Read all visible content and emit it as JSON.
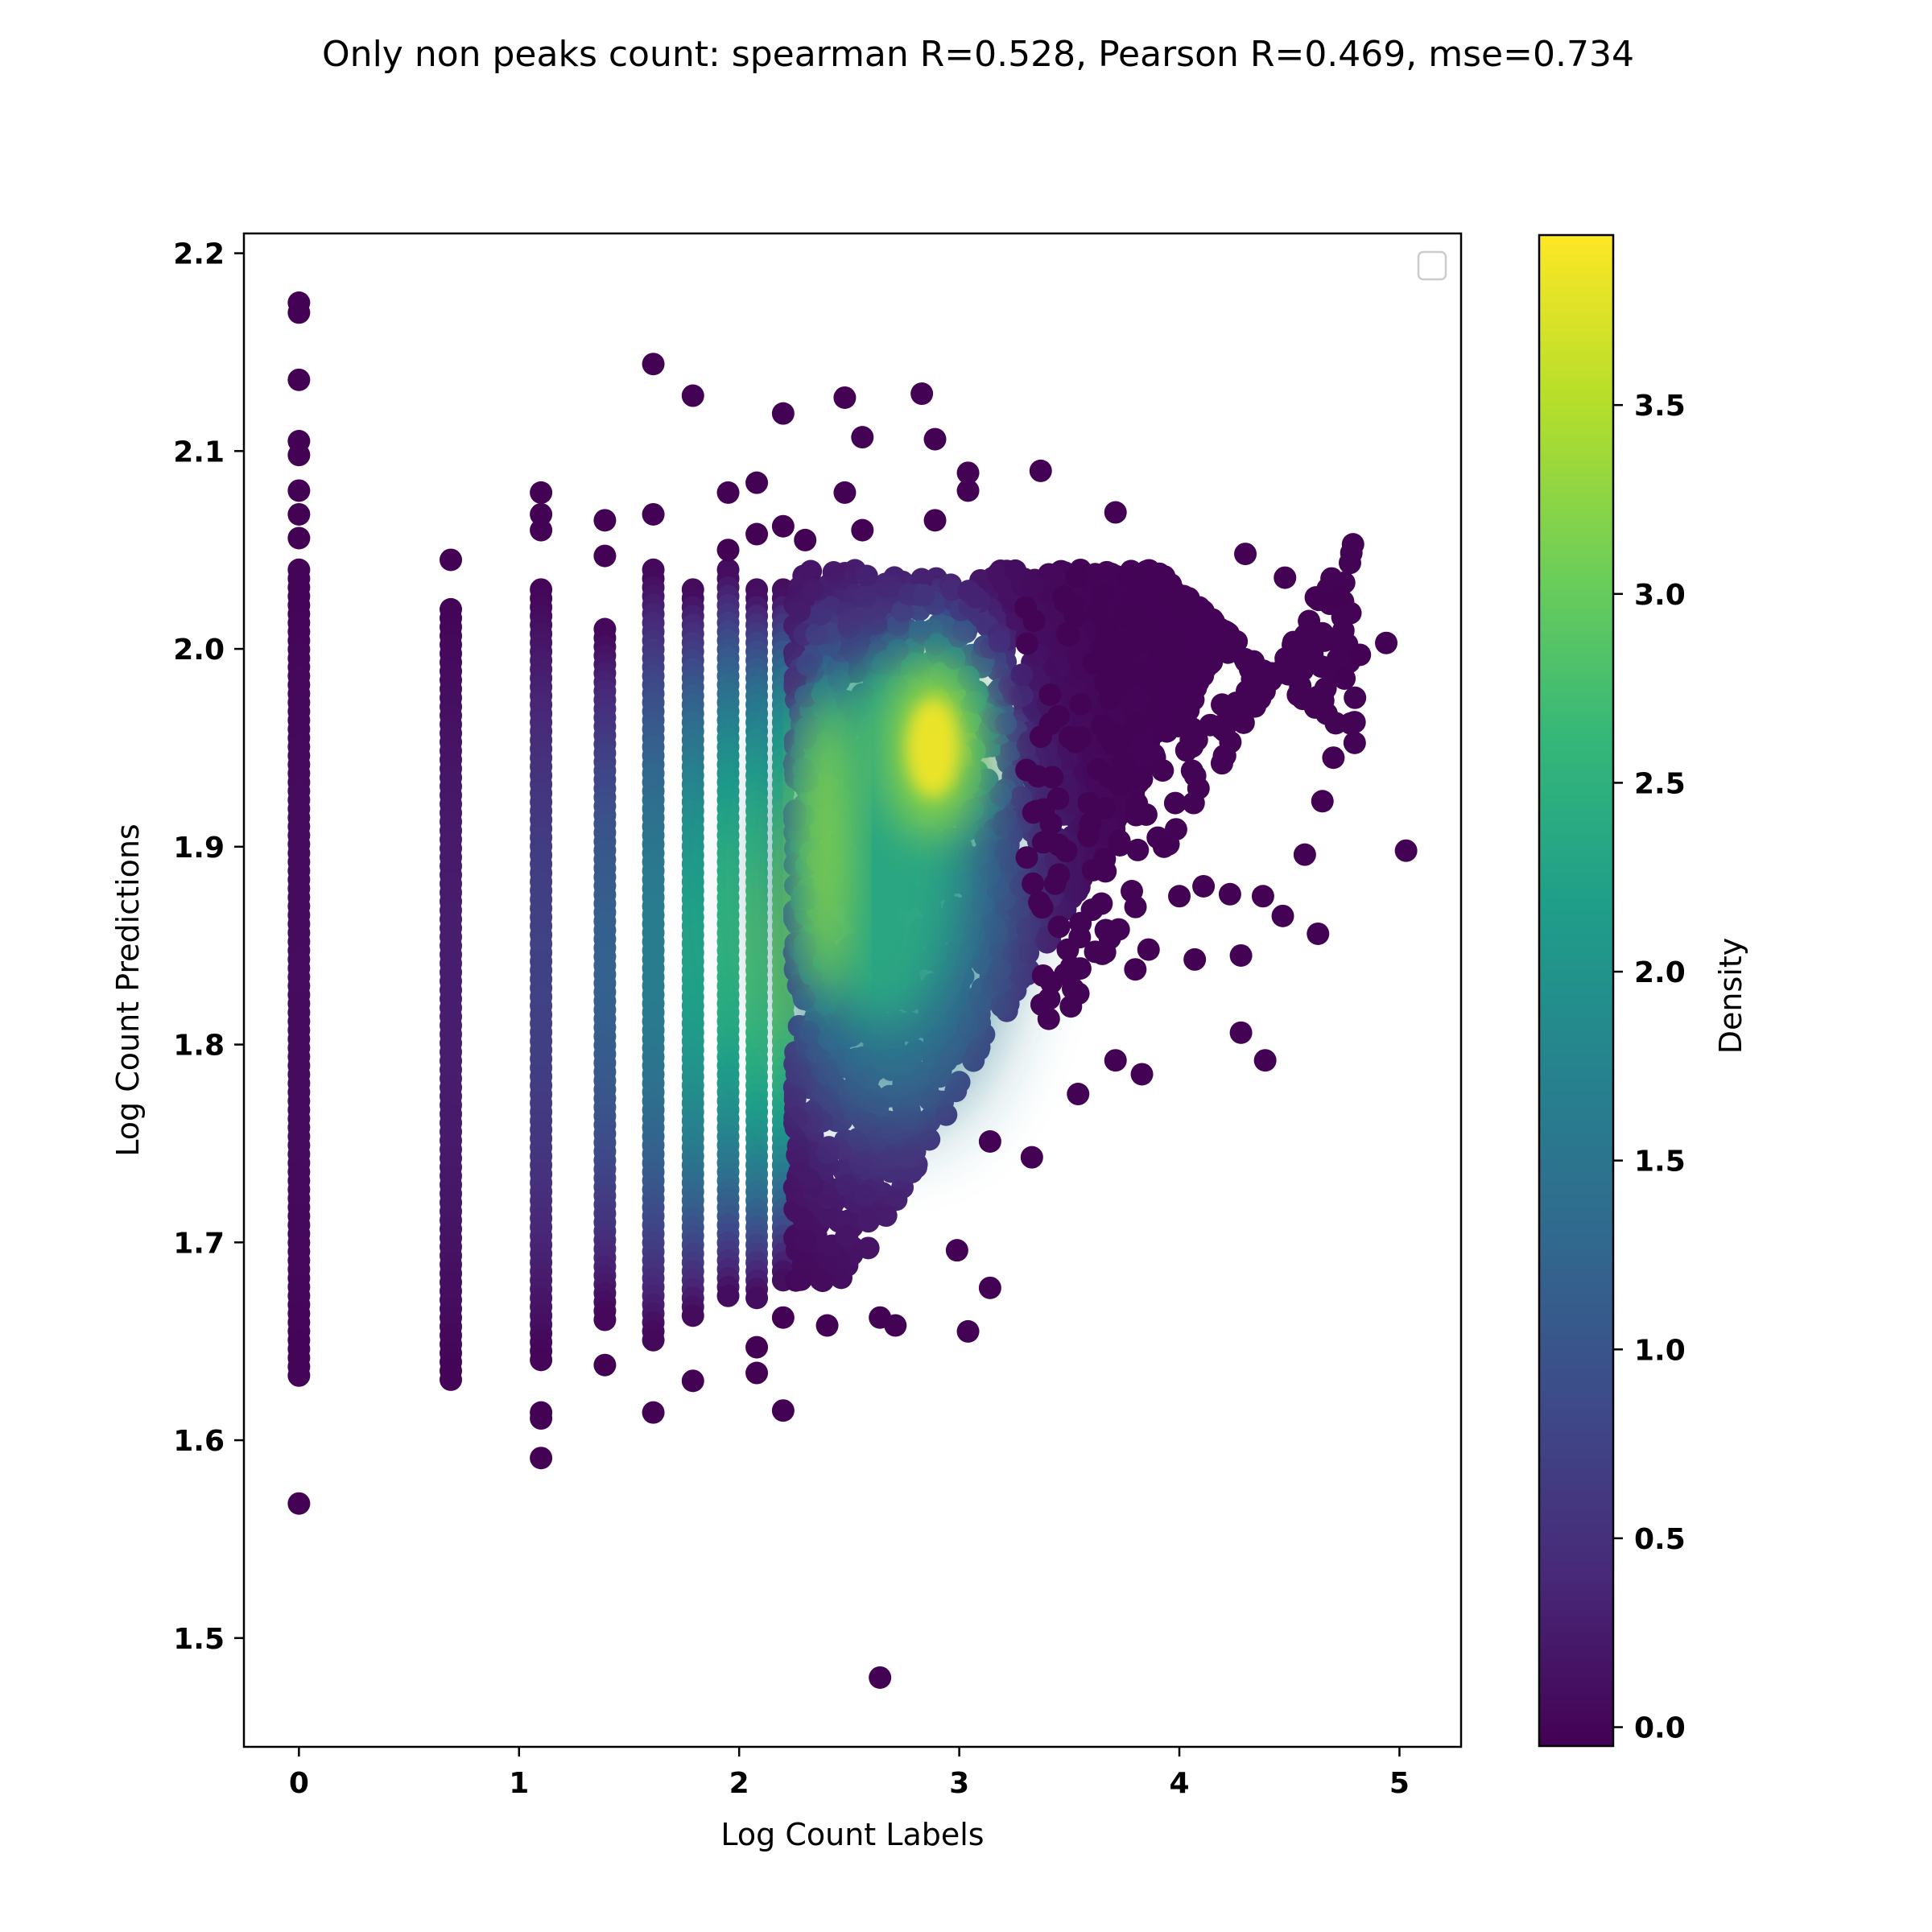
{
  "chart_data": {
    "type": "scatter",
    "title": "Only non peaks count: spearman R=0.528, Pearson R=0.469, mse=0.734",
    "xlabel": "Log Count Labels",
    "ylabel": "Log Count Predictions",
    "xlim": [
      -0.25,
      5.28
    ],
    "ylim": [
      1.445,
      2.21
    ],
    "xticks": [
      0,
      1,
      2,
      3,
      4,
      5
    ],
    "yticks": [
      1.5,
      1.6,
      1.7,
      1.8,
      1.9,
      2.0,
      2.1,
      2.2
    ],
    "grid": false,
    "legend": {
      "placement": "top-right",
      "entries": []
    },
    "colorbar": {
      "label": "Density",
      "min": -0.05,
      "max": 3.95,
      "ticks": [
        0.0,
        0.5,
        1.0,
        1.5,
        2.0,
        2.5,
        3.0,
        3.5
      ],
      "colormap": "viridis",
      "colors": [
        "#440154",
        "#482878",
        "#3e4989",
        "#31688e",
        "#26828e",
        "#1f9e89",
        "#35b779",
        "#6ece58",
        "#b5de2b",
        "#fde725"
      ]
    },
    "density_peaks": [
      {
        "x": 2.88,
        "y": 1.95,
        "density": 3.9
      },
      {
        "x": 2.4,
        "y": 1.9,
        "density": 3.5
      }
    ],
    "columns": [
      {
        "x": 0.0,
        "y_range": [
          1.63,
          2.04
        ],
        "density": 0.1
      },
      {
        "x": 0.69,
        "y_range": [
          1.63,
          2.02
        ],
        "density": 0.3
      },
      {
        "x": 1.1,
        "y_range": [
          1.64,
          2.03
        ],
        "density": 0.75
      },
      {
        "x": 1.39,
        "y_range": [
          1.66,
          2.01
        ],
        "density": 1.2
      },
      {
        "x": 1.61,
        "y_range": [
          1.65,
          2.04
        ],
        "density": 1.65
      },
      {
        "x": 1.79,
        "y_range": [
          1.66,
          2.03
        ],
        "density": 2.25
      },
      {
        "x": 1.95,
        "y_range": [
          1.67,
          2.04
        ],
        "density": 2.55
      },
      {
        "x": 2.08,
        "y_range": [
          1.67,
          2.03
        ],
        "density": 2.8
      },
      {
        "x": 2.2,
        "y_range": [
          1.68,
          2.03
        ],
        "density": 3.1
      }
    ],
    "outliers": [
      {
        "x": 0.0,
        "y": 2.175
      },
      {
        "x": 0.0,
        "y": 2.17
      },
      {
        "x": 0.0,
        "y": 2.136
      },
      {
        "x": 0.0,
        "y": 2.105
      },
      {
        "x": 0.0,
        "y": 2.098
      },
      {
        "x": 0.0,
        "y": 2.08
      },
      {
        "x": 0.0,
        "y": 2.068
      },
      {
        "x": 0.0,
        "y": 2.056
      },
      {
        "x": 0.0,
        "y": 1.568
      },
      {
        "x": 0.69,
        "y": 2.045
      },
      {
        "x": 1.1,
        "y": 2.079
      },
      {
        "x": 1.1,
        "y": 2.068
      },
      {
        "x": 1.1,
        "y": 2.06
      },
      {
        "x": 1.1,
        "y": 1.614
      },
      {
        "x": 1.1,
        "y": 1.611
      },
      {
        "x": 1.1,
        "y": 1.591
      },
      {
        "x": 1.39,
        "y": 2.065
      },
      {
        "x": 1.39,
        "y": 2.047
      },
      {
        "x": 1.39,
        "y": 1.638
      },
      {
        "x": 1.61,
        "y": 2.068
      },
      {
        "x": 1.61,
        "y": 2.144
      },
      {
        "x": 1.61,
        "y": 1.614
      },
      {
        "x": 1.79,
        "y": 2.128
      },
      {
        "x": 1.79,
        "y": 1.63
      },
      {
        "x": 1.95,
        "y": 2.079
      },
      {
        "x": 1.95,
        "y": 2.05
      },
      {
        "x": 2.08,
        "y": 2.084
      },
      {
        "x": 2.08,
        "y": 2.058
      },
      {
        "x": 2.08,
        "y": 1.647
      },
      {
        "x": 2.08,
        "y": 1.634
      },
      {
        "x": 2.2,
        "y": 2.119
      },
      {
        "x": 2.2,
        "y": 2.062
      },
      {
        "x": 2.2,
        "y": 1.662
      },
      {
        "x": 2.2,
        "y": 1.615
      },
      {
        "x": 2.3,
        "y": 2.055
      },
      {
        "x": 2.4,
        "y": 1.658
      },
      {
        "x": 2.48,
        "y": 2.127
      },
      {
        "x": 2.48,
        "y": 2.079
      },
      {
        "x": 2.56,
        "y": 2.107
      },
      {
        "x": 2.56,
        "y": 2.06
      },
      {
        "x": 2.64,
        "y": 1.662
      },
      {
        "x": 2.64,
        "y": 1.48
      },
      {
        "x": 2.71,
        "y": 1.658
      },
      {
        "x": 2.83,
        "y": 2.129
      },
      {
        "x": 2.89,
        "y": 2.106
      },
      {
        "x": 2.89,
        "y": 2.065
      },
      {
        "x": 2.99,
        "y": 1.696
      },
      {
        "x": 3.04,
        "y": 2.089
      },
      {
        "x": 3.04,
        "y": 2.08
      },
      {
        "x": 3.04,
        "y": 1.655
      },
      {
        "x": 3.14,
        "y": 1.677
      },
      {
        "x": 3.37,
        "y": 2.09
      },
      {
        "x": 3.71,
        "y": 2.069
      },
      {
        "x": 4.28,
        "y": 1.806
      },
      {
        "x": 4.39,
        "y": 1.792
      },
      {
        "x": 4.63,
        "y": 1.856
      },
      {
        "x": 4.94,
        "y": 2.003
      },
      {
        "x": 5.03,
        "y": 1.898
      },
      {
        "x": 3.83,
        "y": 1.785
      },
      {
        "x": 3.54,
        "y": 1.775
      },
      {
        "x": 3.33,
        "y": 1.743
      },
      {
        "x": 3.14,
        "y": 1.751
      },
      {
        "x": 3.71,
        "y": 1.792
      },
      {
        "x": 4.47,
        "y": 1.865
      },
      {
        "x": 4.57,
        "y": 1.896
      },
      {
        "x": 4.65,
        "y": 1.923
      },
      {
        "x": 4.7,
        "y": 1.945
      },
      {
        "x": 4.75,
        "y": 1.985
      },
      {
        "x": 4.82,
        "y": 1.997
      },
      {
        "x": 4.72,
        "y": 2.026
      },
      {
        "x": 4.62,
        "y": 2.026
      },
      {
        "x": 4.48,
        "y": 2.036
      },
      {
        "x": 4.3,
        "y": 2.048
      },
      {
        "x": 4.07,
        "y": 1.843
      },
      {
        "x": 4.28,
        "y": 1.845
      },
      {
        "x": 4.11,
        "y": 1.88
      },
      {
        "x": 4.0,
        "y": 1.875
      },
      {
        "x": 4.23,
        "y": 1.876
      },
      {
        "x": 4.38,
        "y": 1.875
      },
      {
        "x": 3.86,
        "y": 1.848
      },
      {
        "x": 3.8,
        "y": 1.838
      },
      {
        "x": 3.93,
        "y": 1.9
      }
    ]
  }
}
